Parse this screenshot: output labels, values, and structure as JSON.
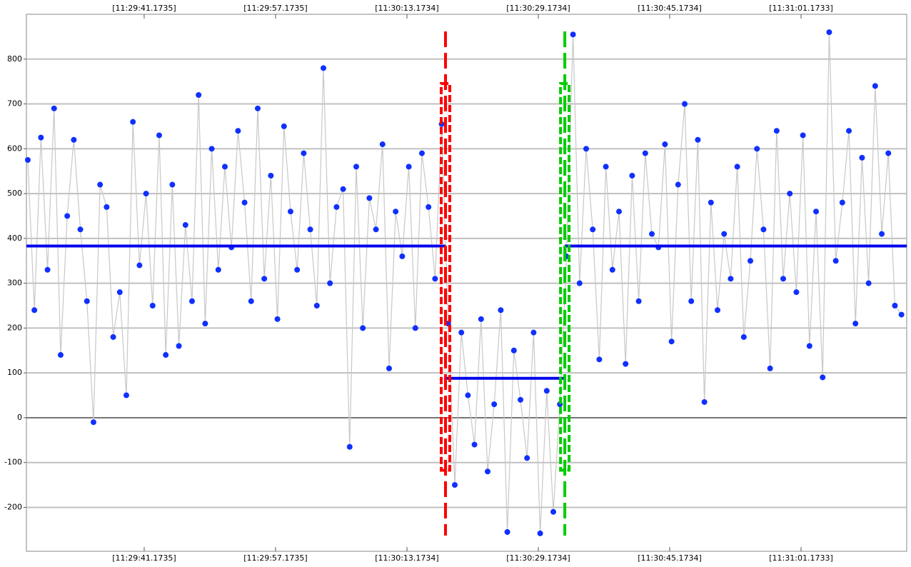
{
  "chart_data": {
    "type": "line",
    "xlim": [
      26.83,
      134.04
    ],
    "ylim": [
      -298,
      900
    ],
    "xticks": [
      {
        "value": 41.1735,
        "label": "[11:29:41.1735]"
      },
      {
        "value": 57.1735,
        "label": "[11:29:57.1735]"
      },
      {
        "value": 73.1734,
        "label": "[11:30:13.1734]"
      },
      {
        "value": 89.1734,
        "label": "[11:30:29.1734]"
      },
      {
        "value": 105.1734,
        "label": "[11:30:45.1734]"
      },
      {
        "value": 121.1733,
        "label": "[11:31:01.1733]"
      }
    ],
    "yticks": [
      -200,
      -100,
      0,
      100,
      200,
      300,
      400,
      500,
      600,
      700,
      800
    ],
    "grid": true,
    "series": [
      {
        "color": "#1030ff",
        "line_color": "#c8c8c8",
        "x": [
          27.0,
          27.8,
          28.6,
          29.4,
          30.2,
          31.0,
          31.8,
          32.6,
          33.4,
          34.2,
          35.0,
          35.8,
          36.6,
          37.4,
          38.2,
          39.0,
          39.8,
          40.6,
          41.4,
          42.2,
          43.0,
          43.8,
          44.6,
          45.4,
          46.2,
          47.0,
          47.8,
          48.6,
          49.4,
          50.2,
          51.0,
          51.8,
          52.6,
          53.4,
          54.2,
          55.0,
          55.8,
          56.6,
          57.4,
          58.2,
          59.0,
          59.8,
          60.6,
          61.4,
          62.2,
          63.0,
          63.8,
          64.6,
          65.4,
          66.2,
          67.0,
          67.8,
          68.6,
          69.4,
          70.2,
          71.0,
          71.8,
          72.6,
          73.4,
          74.2,
          75.0,
          75.8,
          76.6,
          77.4,
          78.2,
          79.0,
          79.8,
          80.6,
          81.4,
          82.2,
          83.0,
          83.8,
          84.6,
          85.4,
          86.2,
          87.0,
          87.8,
          88.6,
          89.4,
          90.2,
          91.0,
          91.8,
          92.6,
          93.4,
          94.2,
          95.0,
          95.8,
          96.6,
          97.4,
          98.2,
          99.0,
          99.8,
          100.6,
          101.4,
          102.2,
          103.0,
          103.8,
          104.6,
          105.4,
          106.2,
          107.0,
          107.8,
          108.6,
          109.4,
          110.2,
          111.0,
          111.8,
          112.6,
          113.4,
          114.2,
          115.0,
          115.8,
          116.6,
          117.4,
          118.2,
          119.0,
          119.8,
          120.6,
          121.4,
          122.2,
          123.0,
          123.8,
          124.6,
          125.4,
          126.2,
          127.0,
          127.8,
          128.6,
          129.4,
          130.2,
          131.0,
          131.8,
          132.6,
          133.4
        ],
        "values": [
          575,
          240,
          625,
          330,
          690,
          140,
          450,
          620,
          420,
          260,
          -10,
          520,
          470,
          180,
          280,
          50,
          660,
          340,
          500,
          250,
          630,
          140,
          520,
          160,
          430,
          260,
          720,
          210,
          600,
          330,
          560,
          380,
          640,
          480,
          260,
          690,
          310,
          540,
          220,
          650,
          460,
          330,
          590,
          420,
          250,
          780,
          300,
          470,
          510,
          -65,
          560,
          200,
          490,
          420,
          610,
          110,
          460,
          360,
          560,
          200,
          590,
          470,
          310,
          655,
          210,
          -150,
          190,
          50,
          -60,
          220,
          -120,
          30,
          240,
          -255,
          150,
          40,
          -90,
          190,
          -258,
          60,
          -210,
          30,
          360,
          855,
          300,
          600,
          420,
          130,
          560,
          330,
          460,
          120,
          540,
          260,
          590,
          410,
          380,
          610,
          170,
          520,
          700,
          260,
          620,
          35,
          480,
          240,
          410,
          310,
          560,
          180,
          350,
          600,
          420,
          110,
          640,
          310,
          500,
          280,
          630,
          160,
          460,
          90,
          860,
          350,
          480,
          640,
          210,
          580,
          300,
          740,
          410,
          590,
          250,
          230
        ]
      }
    ],
    "segments": [
      {
        "x": [
          26.83,
          77.87
        ],
        "value": 383,
        "color": "#0000ee"
      },
      {
        "x": [
          77.87,
          92.4
        ],
        "value": 88,
        "color": "#0000ee"
      },
      {
        "x": [
          92.4,
          134.04
        ],
        "value": 383,
        "color": "#0000ee"
      }
    ],
    "markers": [
      {
        "x": 77.87,
        "color": "#ff0000"
      },
      {
        "x": 92.4,
        "color": "#00cc00"
      }
    ]
  }
}
